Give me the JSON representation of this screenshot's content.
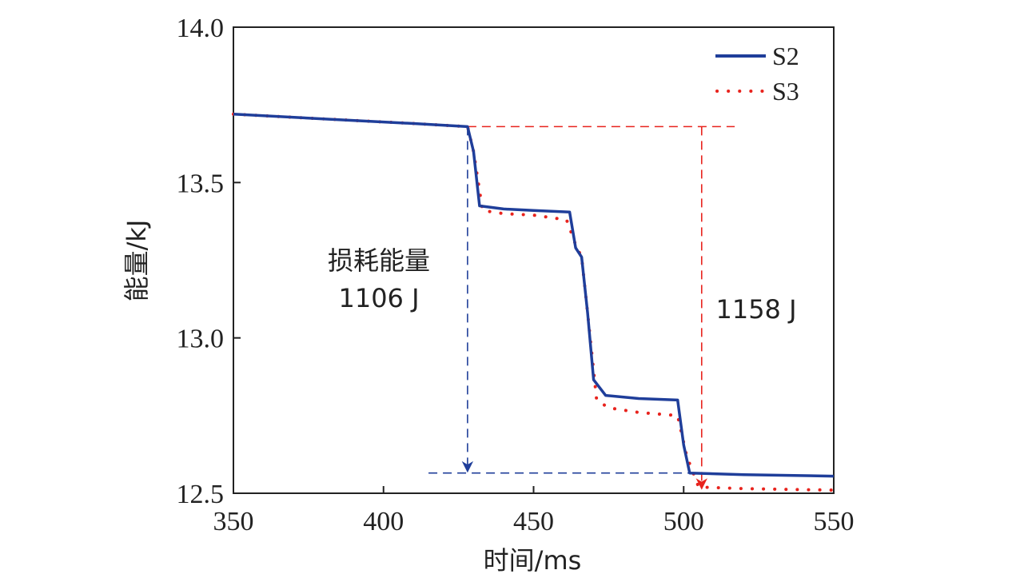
{
  "chart_data": {
    "type": "line",
    "xlabel": "时间/ms",
    "ylabel": "能量/kJ",
    "xlim": [
      350,
      550
    ],
    "ylim": [
      12.5,
      14.0
    ],
    "xticks": [
      "350",
      "400",
      "450",
      "500",
      "550"
    ],
    "yticks": [
      "14.0",
      "13.5",
      "13.0",
      "12.5"
    ],
    "grid": false,
    "legend_position": "top-right",
    "colors": {
      "S2": "#1f3e9a",
      "S3": "#e8231d"
    },
    "series": [
      {
        "name": "S2",
        "style": "solid",
        "x": [
          350,
          380,
          410,
          428,
          430,
          432,
          440,
          450,
          462,
          464,
          466,
          468,
          470,
          474,
          485,
          498,
          500,
          502,
          520,
          550
        ],
        "y": [
          13.72,
          13.705,
          13.69,
          13.68,
          13.6,
          13.425,
          13.415,
          13.41,
          13.405,
          13.29,
          13.26,
          13.08,
          12.865,
          12.815,
          12.805,
          12.8,
          12.655,
          12.565,
          12.56,
          12.555
        ]
      },
      {
        "name": "S3",
        "style": "dotted",
        "x": [
          350,
          380,
          410,
          428,
          430,
          433,
          440,
          450,
          461,
          464,
          466,
          468,
          471,
          475,
          485,
          498,
          501,
          505,
          520,
          550
        ],
        "y": [
          13.72,
          13.705,
          13.69,
          13.68,
          13.6,
          13.41,
          13.4,
          13.395,
          13.38,
          13.3,
          13.26,
          13.08,
          12.8,
          12.775,
          12.76,
          12.75,
          12.62,
          12.52,
          12.515,
          12.51
        ]
      }
    ],
    "annotations": [
      {
        "text_line1": "损耗能量",
        "text_line2": "1106 J",
        "value_J": 1106
      },
      {
        "text": "1158 J",
        "value_J": 1158
      }
    ],
    "reference_lines": {
      "top_level": {
        "y": 13.68,
        "x_from": 428,
        "x_to": 517
      },
      "blue_arrow": {
        "x": 428,
        "y_from": 13.68,
        "y_to": 12.57
      },
      "blue_level": {
        "y": 12.565,
        "x_from": 415,
        "x_to": 502
      },
      "red_arrow": {
        "x": 506,
        "y_from": 13.68,
        "y_to": 12.515
      }
    }
  }
}
